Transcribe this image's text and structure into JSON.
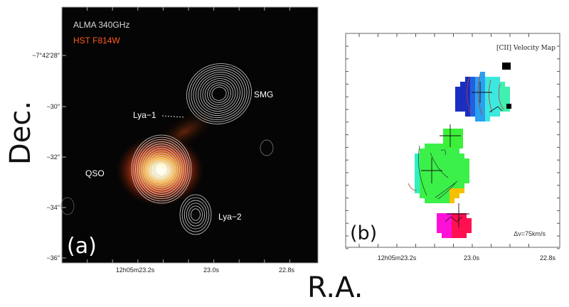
{
  "axis_labels": {
    "y": "Dec.",
    "x": "R.A."
  },
  "panel_a": {
    "panel_label": "(a)",
    "legend": [
      {
        "text": "ALMA 340GHz",
        "color": "#d8d8d8"
      },
      {
        "text": "HST F814W",
        "color": "#ff5a1e"
      }
    ],
    "y_ticks": [
      "−7°42′28″",
      "−30″",
      "−32″",
      "−34″",
      "−36″"
    ],
    "x_ticks": [
      "12h05m23.2s",
      "23.0s",
      "22.8s"
    ],
    "sources": [
      "SMG",
      "Lya−1",
      "QSO",
      "Lya−2"
    ]
  },
  "panel_b": {
    "panel_label": "(b)",
    "title": "[CII] Velocity Map",
    "annotation": "Δv=75km/s",
    "x_ticks": [
      "12h05m23.2s",
      "23.0s",
      "22.8s"
    ]
  }
}
